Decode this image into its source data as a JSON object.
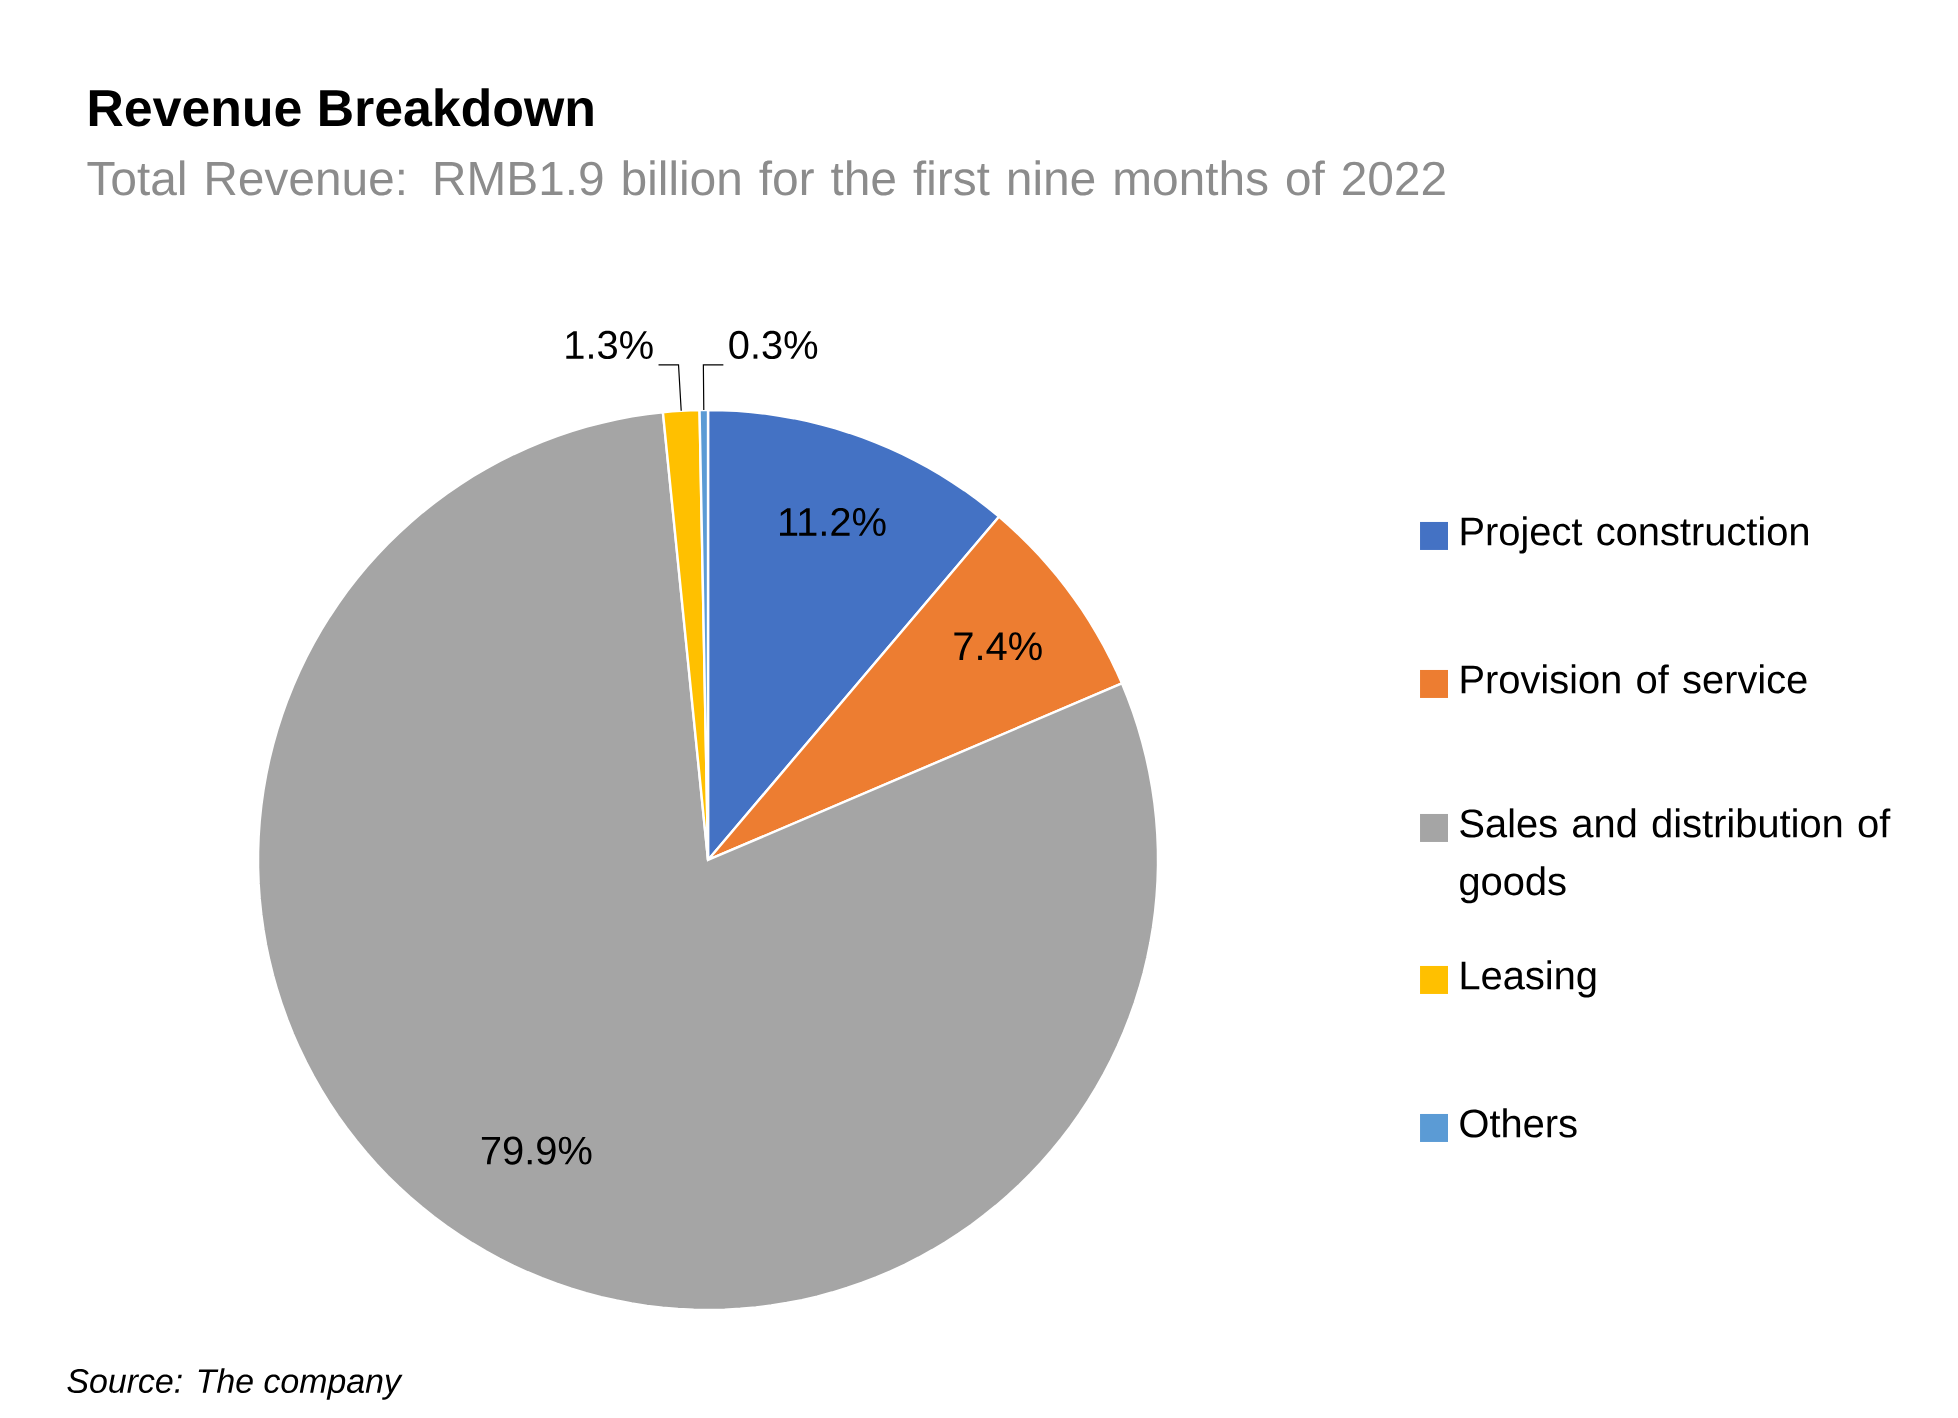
{
  "chart_data": {
    "type": "pie",
    "title": "Revenue Breakdown",
    "subtitle": "Total Revenue: RMB1.9 billion for the first nine months of 2022",
    "categories": [
      "Project construction",
      "Provision of service",
      "Sales and distribution of goods",
      "Leasing",
      "Others"
    ],
    "values": [
      11.2,
      7.4,
      79.9,
      1.3,
      0.3
    ],
    "colors": [
      "#4472c4",
      "#ed7d31",
      "#a5a5a5",
      "#ffc000",
      "#5b9bd5"
    ],
    "value_labels": [
      "11.2%",
      "7.4%",
      "79.9%",
      "1.3%",
      "0.3%"
    ],
    "legend": "right",
    "annotations": [
      "Source: The company"
    ]
  }
}
